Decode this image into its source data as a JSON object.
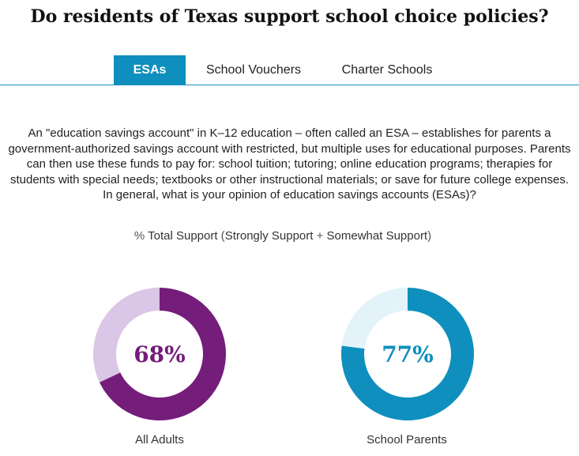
{
  "title": "Do residents of Texas support school choice policies?",
  "tabs": [
    {
      "label": "ESAs",
      "active": true
    },
    {
      "label": "School Vouchers",
      "active": false
    },
    {
      "label": "Charter Schools",
      "active": false
    }
  ],
  "question": "An \"education savings account\" in K–12 education – often called an ESA – establishes for parents a government-authorized savings account with restricted, but multiple uses for educational purposes. Parents can then use these funds to pay for: school tuition; tutoring; online education programs; therapies for students with special needs; textbooks or other instructional materials; or save for future college expenses. In general, what is your opinion of education savings accounts (ESAs)?",
  "subtitle": {
    "prefix": "% ",
    "total": "Total Support",
    "open": " (",
    "strong": "Strongly Support",
    "plus": " + ",
    "somewhat": "Somewhat Support",
    "close": ")"
  },
  "chart_data": [
    {
      "type": "pie",
      "name": "All Adults",
      "value_label": "68%",
      "values": [
        68,
        32
      ],
      "colors": {
        "primary": "#741d7a",
        "remainder": "#dac6e6",
        "text": "#741d7a"
      }
    },
    {
      "type": "pie",
      "name": "School Parents",
      "value_label": "77%",
      "values": [
        77,
        23
      ],
      "colors": {
        "primary": "#0f8fbd",
        "remainder": "#e4f3fa",
        "text": "#0f8fbd"
      }
    }
  ]
}
